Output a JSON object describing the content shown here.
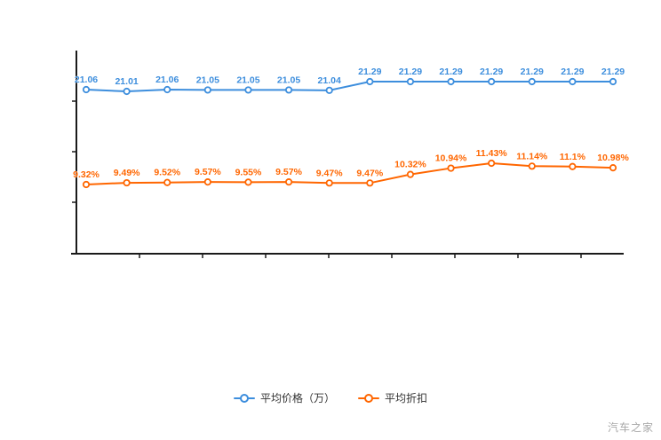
{
  "chart_data": {
    "type": "line",
    "title": "",
    "xlabel": "",
    "ylabel": "",
    "grid": false,
    "legend_position": "bottom-center",
    "series": [
      {
        "name": "平均价格（万）",
        "color": "#3d8edd",
        "values": [
          21.06,
          21.01,
          21.06,
          21.05,
          21.05,
          21.05,
          21.04,
          21.29,
          21.29,
          21.29,
          21.29,
          21.29,
          21.29,
          21.29
        ],
        "labels": [
          "21.06",
          "21.01",
          "21.06",
          "21.05",
          "21.05",
          "21.05",
          "21.04",
          "21.29",
          "21.29",
          "21.29",
          "21.29",
          "21.29",
          "21.29",
          "21.29"
        ]
      },
      {
        "name": "平均折扣",
        "color": "#ff6600",
        "values": [
          9.32,
          9.49,
          9.52,
          9.57,
          9.55,
          9.57,
          9.47,
          9.47,
          10.32,
          10.94,
          11.43,
          11.14,
          11.1,
          10.98
        ],
        "labels": [
          "9.32%",
          "9.49%",
          "9.52%",
          "9.57%",
          "9.55%",
          "9.57%",
          "9.47%",
          "9.47%",
          "10.32%",
          "10.94%",
          "11.43%",
          "11.14%",
          "11.1%",
          "10.98%"
        ]
      }
    ],
    "legend": {
      "items": [
        {
          "label": "平均价格（万）",
          "color": "#3d8edd"
        },
        {
          "label": "平均折扣",
          "color": "#ff6600"
        }
      ]
    }
  },
  "watermark": {
    "text": "汽车之家"
  }
}
